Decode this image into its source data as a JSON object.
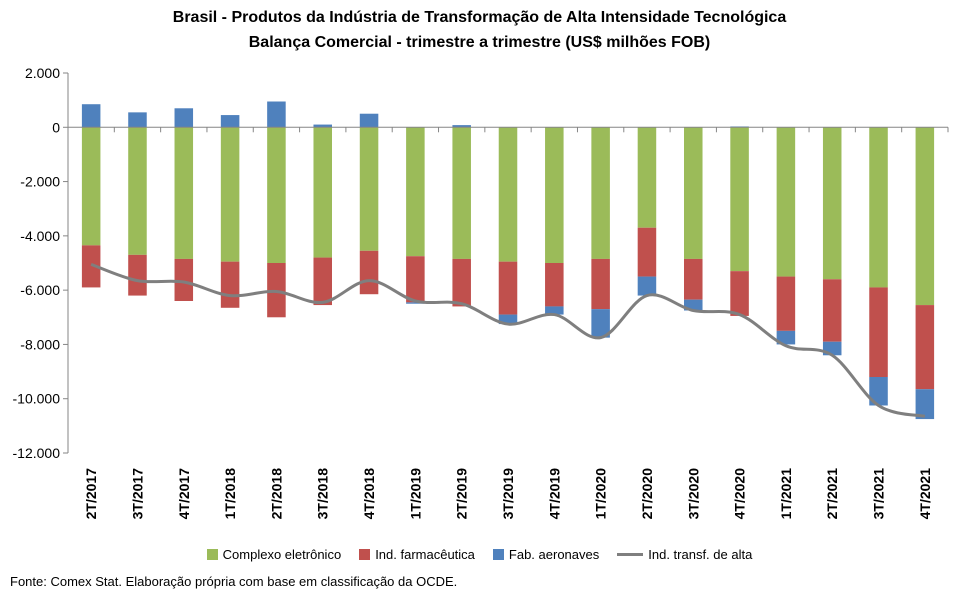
{
  "chart_data": {
    "type": "bar",
    "stacked": true,
    "title": "Brasil - Produtos da Indústria de Transformação  de Alta Intensidade Tecnológica",
    "subtitle": "Balança Comercial - trimestre a trimestre (US$ milhões FOB)",
    "categories": [
      "2T/2017",
      "3T/2017",
      "4T/2017",
      "1T/2018",
      "2T/2018",
      "3T/2018",
      "4T/2018",
      "1T/2019",
      "2T/2019",
      "3T/2019",
      "4T/2019",
      "1T/2020",
      "2T/2020",
      "3T/2020",
      "4T/2020",
      "1T/2021",
      "2T/2021",
      "3T/2021",
      "4T/2021"
    ],
    "ylim": [
      -12000,
      2000
    ],
    "yticks": [
      2000,
      0,
      -2000,
      -4000,
      -6000,
      -8000,
      -10000,
      -12000
    ],
    "ytick_labels": [
      "2.000",
      "0",
      "-2.000",
      "-4.000",
      "-6.000",
      "-8.000",
      "-10.000",
      "-12.000"
    ],
    "grid": false,
    "legend_position": "bottom",
    "series": [
      {
        "name": "Complexo eletrônico",
        "type": "bar",
        "color": "#9BBB59",
        "values": [
          -4350,
          -4700,
          -4850,
          -4950,
          -5000,
          -4800,
          -4550,
          -4750,
          -4850,
          -4950,
          -5000,
          -4850,
          -3700,
          -4850,
          -5300,
          -5500,
          -5600,
          -5900,
          -6550
        ]
      },
      {
        "name": "Ind. farmacêutica",
        "type": "bar",
        "color": "#C0504D",
        "values": [
          -1550,
          -1500,
          -1550,
          -1700,
          -2000,
          -1750,
          -1600,
          -1700,
          -1750,
          -1950,
          -1600,
          -1850,
          -1800,
          -1500,
          -1650,
          -2000,
          -2300,
          -3300,
          -3100
        ]
      },
      {
        "name": "Fab. aeronaves",
        "type": "bar",
        "color": "#4F81BD",
        "values": [
          850,
          550,
          700,
          450,
          950,
          100,
          500,
          -50,
          80,
          -350,
          -300,
          -1050,
          -700,
          -400,
          30,
          -500,
          -500,
          -1050,
          -1100
        ]
      },
      {
        "name": "Ind. transf. de alta",
        "type": "line",
        "color": "#7F7F7F",
        "values": [
          -5050,
          -5650,
          -5700,
          -6200,
          -6050,
          -6450,
          -5650,
          -6400,
          -6500,
          -7250,
          -6900,
          -7750,
          -6200,
          -6750,
          -6900,
          -8050,
          -8400,
          -10250,
          -10650
        ]
      }
    ]
  },
  "legend": {
    "items": [
      {
        "label": "Complexo eletrônico",
        "color": "#9BBB59"
      },
      {
        "label": "Ind. farmacêutica",
        "color": "#C0504D"
      },
      {
        "label": "Fab. aeronaves",
        "color": "#4F81BD"
      },
      {
        "label": "Ind. transf. de alta",
        "color": "#7F7F7F"
      }
    ]
  },
  "source": "Fonte: Comex Stat. Elaboração própria com base em classificação da OCDE."
}
